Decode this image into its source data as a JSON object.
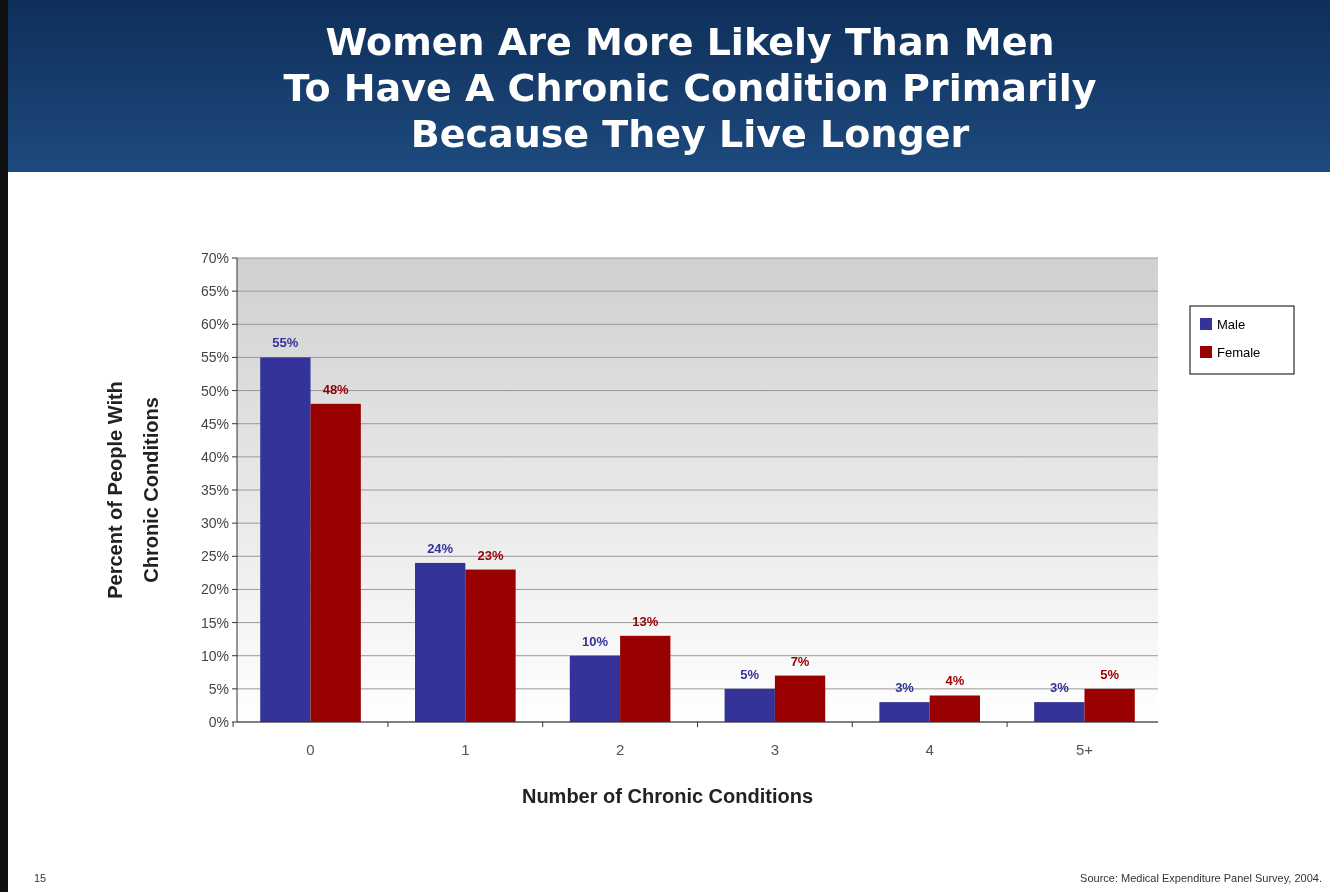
{
  "chart_data": {
    "type": "bar",
    "title": "Women Are More Likely Than Men\nTo Have A Chronic Condition Primarily\nBecause They Live Longer",
    "xlabel": "Number of Chronic Conditions",
    "ylabel": "Percent of People With\nChronic Conditions",
    "categories": [
      "0",
      "1",
      "2",
      "3",
      "4",
      "5+"
    ],
    "series": [
      {
        "name": "Male",
        "color": "#333399",
        "values": [
          55,
          24,
          10,
          5,
          3,
          3
        ],
        "value_labels": [
          "55%",
          "24%",
          "10%",
          "5%",
          "3%",
          "3%"
        ]
      },
      {
        "name": "Female",
        "color": "#990000",
        "values": [
          48,
          23,
          13,
          7,
          4,
          5
        ],
        "value_labels": [
          "48%",
          "23%",
          "13%",
          "7%",
          "4%",
          "5%"
        ]
      }
    ],
    "ylim": [
      0,
      70
    ],
    "yticks": [
      {
        "value": 0,
        "label": "0%"
      },
      {
        "value": 5,
        "label": "5%"
      },
      {
        "value": 10,
        "label": "10%"
      },
      {
        "value": 15,
        "label": "15%"
      },
      {
        "value": 20,
        "label": "20%"
      },
      {
        "value": 25,
        "label": "25%"
      },
      {
        "value": 30,
        "label": "30%"
      },
      {
        "value": 35,
        "label": "35%"
      },
      {
        "value": 40,
        "label": "40%"
      },
      {
        "value": 45,
        "label": "45%"
      },
      {
        "value": 50,
        "label": "50%"
      },
      {
        "value": 55,
        "label": "55%"
      },
      {
        "value": 60,
        "label": "60%"
      },
      {
        "value": 65,
        "label": "65%"
      },
      {
        "value": 70,
        "label": "70%"
      }
    ],
    "grid": "y",
    "legend": "top right",
    "annotations": [
      "15",
      "Source: Medical Expenditure Panel Survey, 2004."
    ]
  }
}
